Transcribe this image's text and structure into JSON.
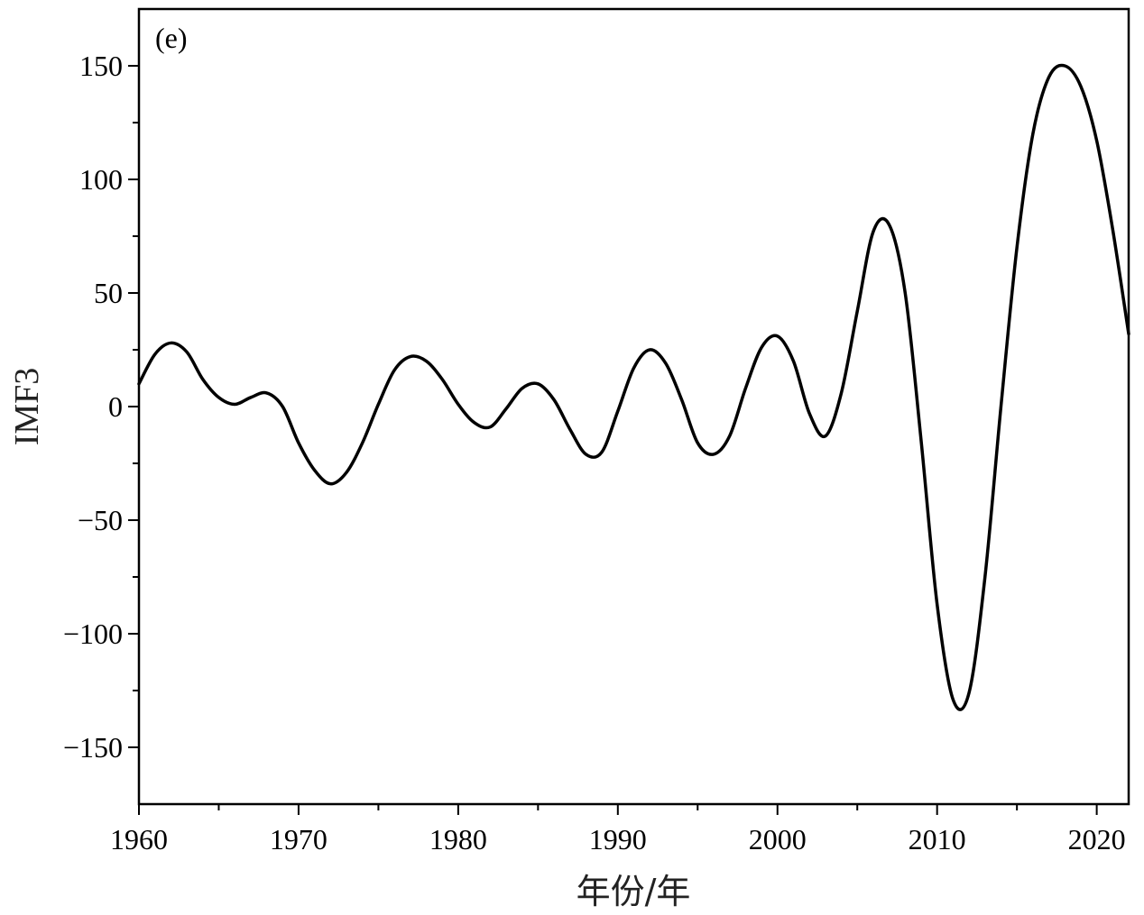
{
  "chart_data": {
    "type": "line",
    "panel_label": "(e)",
    "xlabel": "年份/年",
    "ylabel": "IMF3",
    "xlim": [
      1960,
      2022
    ],
    "ylim": [
      -175,
      175
    ],
    "x_ticks": [
      1960,
      1970,
      1980,
      1990,
      2000,
      2010,
      2020
    ],
    "x_tick_labels": [
      "1960",
      "1970",
      "1980",
      "1990",
      "2000",
      "2010",
      "2020"
    ],
    "x_minor_ticks": [
      1965,
      1975,
      1985,
      1995,
      2005,
      2015
    ],
    "y_ticks": [
      150,
      100,
      50,
      0,
      -50,
      -100,
      -150
    ],
    "y_tick_labels": [
      "150",
      "100",
      "50",
      "0",
      "−50",
      "−100",
      "−150"
    ],
    "y_minor_ticks": [
      125,
      75,
      25,
      -25,
      -75,
      -125
    ],
    "grid": false,
    "series": [
      {
        "color": "#000000",
        "x": [
          1960,
          1961,
          1962,
          1963,
          1964,
          1965,
          1966,
          1967,
          1968,
          1969,
          1970,
          1971,
          1972,
          1973,
          1974,
          1975,
          1976,
          1977,
          1978,
          1979,
          1980,
          1981,
          1982,
          1983,
          1984,
          1985,
          1986,
          1987,
          1988,
          1989,
          1990,
          1991,
          1992,
          1993,
          1994,
          1995,
          1996,
          1997,
          1998,
          1999,
          2000,
          2001,
          2002,
          2003,
          2004,
          2005,
          2006,
          2007,
          2008,
          2009,
          2010,
          2011,
          2012,
          2013,
          2014,
          2015,
          2016,
          2017,
          2018,
          2019,
          2020,
          2021,
          2022
        ],
        "y": [
          10,
          23,
          28,
          24,
          12,
          4,
          1,
          4,
          6,
          0,
          -16,
          -28,
          -34,
          -29,
          -16,
          1,
          16,
          22,
          20,
          12,
          1,
          -7,
          -9,
          -1,
          8,
          10,
          3,
          -10,
          -21,
          -20,
          -2,
          17,
          25,
          19,
          3,
          -16,
          -21,
          -13,
          8,
          26,
          31,
          20,
          -3,
          -13,
          6,
          42,
          77,
          80,
          50,
          -15,
          -87,
          -129,
          -126,
          -75,
          0,
          70,
          120,
          145,
          150,
          141,
          117,
          78,
          32
        ]
      }
    ]
  }
}
